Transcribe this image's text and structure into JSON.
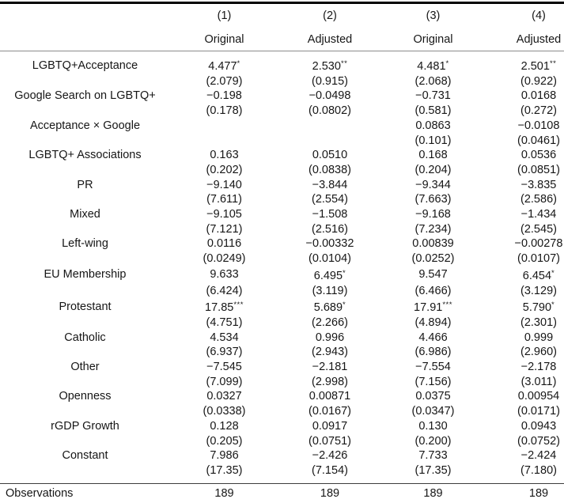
{
  "colors": {
    "text": "#161616",
    "rule_heavy": "#000000",
    "rule_light": "#8c8c8c"
  },
  "table": {
    "header": {
      "model_numbers": [
        "(1)",
        "(2)",
        "(3)",
        "(4)"
      ],
      "model_types": [
        "Original",
        "Adjusted",
        "Original",
        "Adjusted"
      ]
    },
    "rows": [
      {
        "label": "LGBTQ+Acceptance",
        "cells": [
          {
            "coef": "4.477",
            "stars": "*",
            "se": "(2.079)"
          },
          {
            "coef": "2.530",
            "stars": "**",
            "se": "(0.915)"
          },
          {
            "coef": "4.481",
            "stars": "*",
            "se": "(2.068)"
          },
          {
            "coef": "2.501",
            "stars": "**",
            "se": "(0.922)"
          }
        ]
      },
      {
        "label": "Google Search on LGBTQ+",
        "cells": [
          {
            "coef": "−0.198",
            "stars": "",
            "se": "(0.178)"
          },
          {
            "coef": "−0.0498",
            "stars": "",
            "se": "(0.0802)"
          },
          {
            "coef": "−0.731",
            "stars": "",
            "se": "(0.581)"
          },
          {
            "coef": "0.0168",
            "stars": "",
            "se": "(0.272)"
          }
        ]
      },
      {
        "label": "Acceptance  ×  Google",
        "cells": [
          {
            "coef": "",
            "stars": "",
            "se": ""
          },
          {
            "coef": "",
            "stars": "",
            "se": ""
          },
          {
            "coef": "0.0863",
            "stars": "",
            "se": "(0.101)"
          },
          {
            "coef": "−0.0108",
            "stars": "",
            "se": "(0.0461)"
          }
        ]
      },
      {
        "label": "LGBTQ+ Associations",
        "cells": [
          {
            "coef": "0.163",
            "stars": "",
            "se": "(0.202)"
          },
          {
            "coef": "0.0510",
            "stars": "",
            "se": "(0.0838)"
          },
          {
            "coef": "0.168",
            "stars": "",
            "se": "(0.204)"
          },
          {
            "coef": "0.0536",
            "stars": "",
            "se": "(0.0851)"
          }
        ]
      },
      {
        "label": "PR",
        "cells": [
          {
            "coef": "−9.140",
            "stars": "",
            "se": "(7.611)"
          },
          {
            "coef": "−3.844",
            "stars": "",
            "se": "(2.554)"
          },
          {
            "coef": "−9.344",
            "stars": "",
            "se": "(7.663)"
          },
          {
            "coef": "−3.835",
            "stars": "",
            "se": "(2.586)"
          }
        ]
      },
      {
        "label": "Mixed",
        "cells": [
          {
            "coef": "−9.105",
            "stars": "",
            "se": "(7.121)"
          },
          {
            "coef": "−1.508",
            "stars": "",
            "se": "(2.516)"
          },
          {
            "coef": "−9.168",
            "stars": "",
            "se": "(7.234)"
          },
          {
            "coef": "−1.434",
            "stars": "",
            "se": "(2.545)"
          }
        ]
      },
      {
        "label": "Left-wing",
        "cells": [
          {
            "coef": "0.0116",
            "stars": "",
            "se": "(0.0249)"
          },
          {
            "coef": "−0.00332",
            "stars": "",
            "se": "(0.0104)"
          },
          {
            "coef": "0.00839",
            "stars": "",
            "se": "(0.0252)"
          },
          {
            "coef": "−0.00278",
            "stars": "",
            "se": "(0.0107)"
          }
        ]
      },
      {
        "label": "EU Membership",
        "cells": [
          {
            "coef": "9.633",
            "stars": "",
            "se": "(6.424)"
          },
          {
            "coef": "6.495",
            "stars": "*",
            "se": "(3.119)"
          },
          {
            "coef": "9.547",
            "stars": "",
            "se": "(6.466)"
          },
          {
            "coef": "6.454",
            "stars": "*",
            "se": "(3.129)"
          }
        ]
      },
      {
        "label": "Protestant",
        "cells": [
          {
            "coef": "17.85",
            "stars": "***",
            "se": "(4.751)"
          },
          {
            "coef": "5.689",
            "stars": "*",
            "se": "(2.266)"
          },
          {
            "coef": "17.91",
            "stars": "***",
            "se": "(4.894)"
          },
          {
            "coef": "5.790",
            "stars": "*",
            "se": "(2.301)"
          }
        ]
      },
      {
        "label": "Catholic",
        "cells": [
          {
            "coef": "4.534",
            "stars": "",
            "se": "(6.937)"
          },
          {
            "coef": "0.996",
            "stars": "",
            "se": "(2.943)"
          },
          {
            "coef": "4.466",
            "stars": "",
            "se": "(6.986)"
          },
          {
            "coef": "0.999",
            "stars": "",
            "se": "(2.960)"
          }
        ]
      },
      {
        "label": "Other",
        "cells": [
          {
            "coef": "−7.545",
            "stars": "",
            "se": "(7.099)"
          },
          {
            "coef": "−2.181",
            "stars": "",
            "se": "(2.998)"
          },
          {
            "coef": "−7.554",
            "stars": "",
            "se": "(7.156)"
          },
          {
            "coef": "−2.178",
            "stars": "",
            "se": "(3.011)"
          }
        ]
      },
      {
        "label": "Openness",
        "cells": [
          {
            "coef": "0.0327",
            "stars": "",
            "se": "(0.0338)"
          },
          {
            "coef": "0.00871",
            "stars": "",
            "se": "(0.0167)"
          },
          {
            "coef": "0.0375",
            "stars": "",
            "se": "(0.0347)"
          },
          {
            "coef": "0.00954",
            "stars": "",
            "se": "(0.0171)"
          }
        ]
      },
      {
        "label": "rGDP Growth",
        "cells": [
          {
            "coef": "0.128",
            "stars": "",
            "se": "(0.205)"
          },
          {
            "coef": "0.0917",
            "stars": "",
            "se": "(0.0751)"
          },
          {
            "coef": "0.130",
            "stars": "",
            "se": "(0.200)"
          },
          {
            "coef": "0.0943",
            "stars": "",
            "se": "(0.0752)"
          }
        ]
      },
      {
        "label": "Constant",
        "cells": [
          {
            "coef": "7.986",
            "stars": "",
            "se": "(17.35)"
          },
          {
            "coef": "−2.426",
            "stars": "",
            "se": "(7.154)"
          },
          {
            "coef": "7.733",
            "stars": "",
            "se": "(17.35)"
          },
          {
            "coef": "−2.424",
            "stars": "",
            "se": "(7.180)"
          }
        ]
      }
    ],
    "footer": {
      "label": "Observations",
      "values": [
        "189",
        "189",
        "189",
        "189"
      ]
    }
  }
}
